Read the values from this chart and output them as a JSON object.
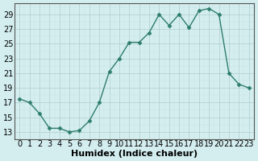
{
  "x": [
    0,
    1,
    2,
    3,
    4,
    5,
    6,
    7,
    8,
    9,
    10,
    11,
    12,
    13,
    14,
    15,
    16,
    17,
    18,
    19,
    20,
    21,
    22,
    23
  ],
  "y": [
    17.5,
    17.0,
    15.5,
    13.5,
    13.5,
    13.0,
    13.2,
    14.5,
    17.0,
    21.2,
    23.0,
    25.2,
    25.2,
    26.5,
    29.0,
    27.5,
    29.0,
    27.2,
    29.5,
    29.8,
    29.0,
    21.0,
    19.5,
    19.0
  ],
  "xlabel": "Humidex (Indice chaleur)",
  "ylabel": "",
  "xlim": [
    -0.5,
    23.5
  ],
  "ylim": [
    12,
    30.5
  ],
  "yticks": [
    13,
    15,
    17,
    19,
    21,
    23,
    25,
    27,
    29
  ],
  "xticks": [
    0,
    1,
    2,
    3,
    4,
    5,
    6,
    7,
    8,
    9,
    10,
    11,
    12,
    13,
    14,
    15,
    16,
    17,
    18,
    19,
    20,
    21,
    22,
    23
  ],
  "line_color": "#2e7d6e",
  "marker_color": "#2e7d6e",
  "bg_color": "#d4eef0",
  "grid_color_major": "#b0cccc",
  "grid_color_minor": "#c8e0e0",
  "xlabel_fontsize": 8,
  "tick_fontsize": 7
}
